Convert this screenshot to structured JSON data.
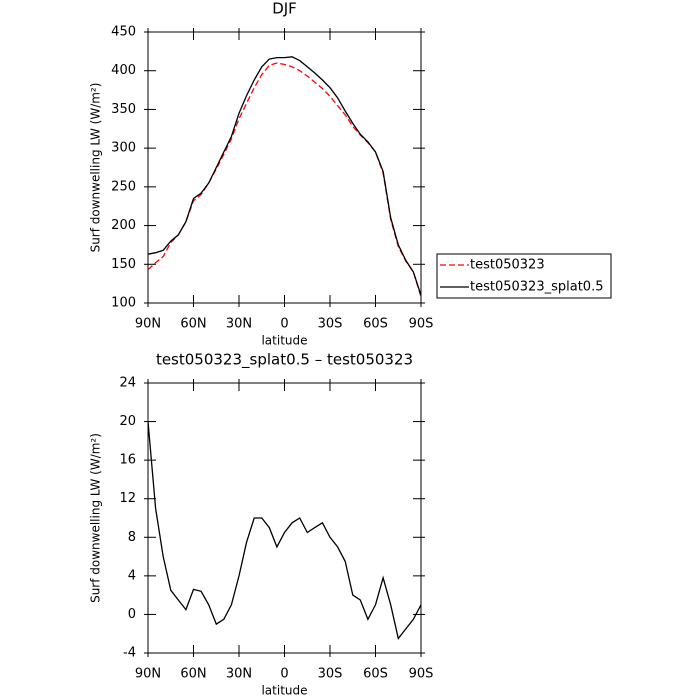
{
  "chart_data": [
    {
      "type": "line",
      "title": "DJF",
      "xlabel": "latitude",
      "ylabel": "Surf downwelling LW (W/m²)",
      "x": [
        90,
        85,
        80,
        75,
        70,
        65,
        60,
        55,
        50,
        45,
        40,
        35,
        30,
        25,
        20,
        15,
        10,
        5,
        0,
        -5,
        -10,
        -15,
        -20,
        -25,
        -30,
        -35,
        -40,
        -45,
        -50,
        -55,
        -60,
        -65,
        -70,
        -75,
        -80,
        -85,
        -90
      ],
      "xlim": [
        90,
        -90
      ],
      "xticks": [
        {
          "value": 90,
          "label": "90N"
        },
        {
          "value": 60,
          "label": "60N"
        },
        {
          "value": 30,
          "label": "30N"
        },
        0,
        {
          "value": -30,
          "label": "30S"
        },
        {
          "value": -60,
          "label": "60S"
        },
        {
          "value": -90,
          "label": "90S"
        }
      ],
      "ylim": [
        100,
        450
      ],
      "yticks": [
        100,
        150,
        200,
        250,
        300,
        350,
        400,
        450
      ],
      "legend": "outside-right",
      "series": [
        {
          "name": "test050323",
          "color": "#ff0000",
          "dashed": true,
          "values": [
            143,
            152,
            160,
            178,
            188,
            205,
            232,
            240,
            255,
            273,
            292,
            312,
            338,
            358,
            378,
            395,
            407,
            410,
            408,
            405,
            400,
            393,
            385,
            377,
            367,
            355,
            343,
            328,
            317,
            307,
            295,
            268,
            208,
            173,
            154,
            140,
            108
          ]
        },
        {
          "name": "test050323_splat0.5",
          "color": "#000000",
          "dashed": false,
          "values": [
            163,
            165,
            168,
            180,
            188,
            205,
            235,
            242,
            255,
            275,
            295,
            315,
            345,
            368,
            388,
            405,
            415,
            417,
            417,
            418,
            413,
            405,
            397,
            388,
            378,
            365,
            348,
            332,
            318,
            308,
            295,
            270,
            210,
            175,
            155,
            140,
            110
          ]
        }
      ]
    },
    {
      "type": "line",
      "title": "test050323_splat0.5 – test050323",
      "xlabel": "latitude",
      "ylabel": "Surf downwelling LW (W/m²)",
      "x": [
        90,
        85,
        80,
        75,
        70,
        65,
        60,
        55,
        50,
        45,
        40,
        35,
        30,
        25,
        20,
        15,
        10,
        5,
        0,
        -5,
        -10,
        -15,
        -20,
        -25,
        -30,
        -35,
        -40,
        -45,
        -50,
        -55,
        -60,
        -65,
        -70,
        -75,
        -80,
        -85,
        -90
      ],
      "xlim": [
        90,
        -90
      ],
      "xticks": [
        {
          "value": 90,
          "label": "90N"
        },
        {
          "value": 60,
          "label": "60N"
        },
        {
          "value": 30,
          "label": "30N"
        },
        0,
        {
          "value": -30,
          "label": "30S"
        },
        {
          "value": -60,
          "label": "60S"
        },
        {
          "value": -90,
          "label": "90S"
        }
      ],
      "ylim": [
        -4,
        24
      ],
      "yticks": [
        -4,
        0,
        4,
        8,
        12,
        16,
        20,
        24
      ],
      "color": "#000000",
      "values": [
        20,
        11,
        6,
        2.5,
        1.5,
        0.5,
        2.6,
        2.4,
        1,
        -1,
        -0.5,
        1,
        4,
        7.5,
        10,
        10,
        9,
        7,
        8.5,
        9.5,
        10,
        8.5,
        9,
        9.5,
        8,
        7,
        5.5,
        2,
        1.5,
        -0.5,
        1,
        3.8,
        1,
        -2.5,
        -1.5,
        -0.5,
        1
      ]
    }
  ]
}
